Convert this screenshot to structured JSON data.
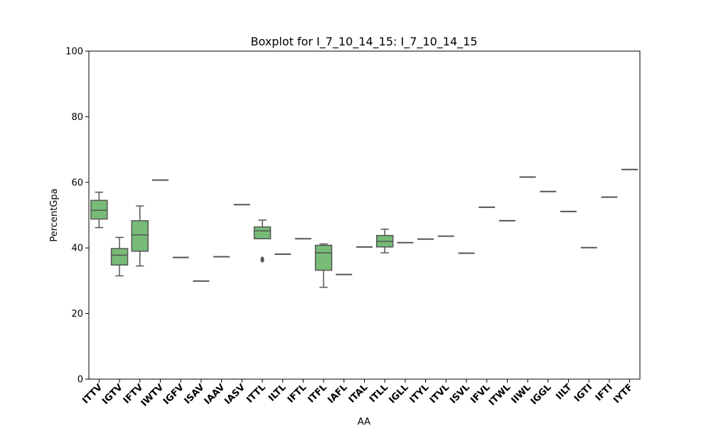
{
  "chart_data": {
    "type": "boxplot",
    "title": "Boxplot for I_7_10_14_15: I_7_10_14_15",
    "xlabel": "AA",
    "ylabel": "PercentGpa",
    "ylim": [
      0,
      100
    ],
    "yticks": [
      0,
      20,
      40,
      60,
      80,
      100
    ],
    "grid": false,
    "box_color": "#77bb77",
    "line_color": "#555555",
    "categories": [
      "ITTV",
      "IGTV",
      "IFTV",
      "IWTV",
      "IGFV",
      "ISAV",
      "IAAV",
      "IASV",
      "ITTL",
      "ILTL",
      "IFTL",
      "ITFL",
      "IAFL",
      "ITAL",
      "ITLL",
      "IGLL",
      "ITYL",
      "ITVL",
      "ISVL",
      "IFVL",
      "ITWL",
      "IIWL",
      "IGGL",
      "IILT",
      "IGTI",
      "IFTI",
      "IYTF"
    ],
    "boxes": [
      {
        "category": "ITTV",
        "min": 46.2,
        "q1": 48.8,
        "median": 51.5,
        "q3": 54.5,
        "max": 57.0,
        "outliers": []
      },
      {
        "category": "IGTV",
        "min": 31.5,
        "q1": 34.8,
        "median": 37.8,
        "q3": 39.8,
        "max": 43.2,
        "outliers": []
      },
      {
        "category": "IFTV",
        "min": 34.5,
        "q1": 39.0,
        "median": 44.0,
        "q3": 48.3,
        "max": 52.8,
        "outliers": []
      },
      {
        "category": "IWTV",
        "min": 60.7,
        "q1": 60.7,
        "median": 60.7,
        "q3": 60.7,
        "max": 60.7,
        "outliers": []
      },
      {
        "category": "IGFV",
        "min": 37.1,
        "q1": 37.1,
        "median": 37.1,
        "q3": 37.1,
        "max": 37.1,
        "outliers": []
      },
      {
        "category": "ISAV",
        "min": 29.9,
        "q1": 29.9,
        "median": 29.9,
        "q3": 29.9,
        "max": 29.9,
        "outliers": []
      },
      {
        "category": "IAAV",
        "min": 37.3,
        "q1": 37.3,
        "median": 37.3,
        "q3": 37.3,
        "max": 37.3,
        "outliers": []
      },
      {
        "category": "IASV",
        "min": 53.2,
        "q1": 53.2,
        "median": 53.2,
        "q3": 53.2,
        "max": 53.2,
        "outliers": []
      },
      {
        "category": "ITTL",
        "min": 42.8,
        "q1": 42.8,
        "median": 45.2,
        "q3": 46.4,
        "max": 48.5,
        "outliers": [
          36.2,
          36.7
        ]
      },
      {
        "category": "ILTL",
        "min": 38.1,
        "q1": 38.1,
        "median": 38.1,
        "q3": 38.1,
        "max": 38.1,
        "outliers": []
      },
      {
        "category": "IFTL",
        "min": 42.8,
        "q1": 42.8,
        "median": 42.8,
        "q3": 42.8,
        "max": 42.8,
        "outliers": []
      },
      {
        "category": "ITFL",
        "min": 28.0,
        "q1": 33.2,
        "median": 38.5,
        "q3": 40.8,
        "max": 41.2,
        "outliers": []
      },
      {
        "category": "IAFL",
        "min": 31.9,
        "q1": 31.9,
        "median": 31.9,
        "q3": 31.9,
        "max": 31.9,
        "outliers": []
      },
      {
        "category": "ITAL",
        "min": 40.3,
        "q1": 40.3,
        "median": 40.3,
        "q3": 40.3,
        "max": 40.3,
        "outliers": []
      },
      {
        "category": "ITLL",
        "min": 38.5,
        "q1": 40.3,
        "median": 42.0,
        "q3": 43.8,
        "max": 45.7,
        "outliers": []
      },
      {
        "category": "IGLL",
        "min": 41.6,
        "q1": 41.6,
        "median": 41.6,
        "q3": 41.6,
        "max": 41.6,
        "outliers": []
      },
      {
        "category": "ITYL",
        "min": 42.7,
        "q1": 42.7,
        "median": 42.7,
        "q3": 42.7,
        "max": 42.7,
        "outliers": []
      },
      {
        "category": "ITVL",
        "min": 43.6,
        "q1": 43.6,
        "median": 43.6,
        "q3": 43.6,
        "max": 43.6,
        "outliers": []
      },
      {
        "category": "ISVL",
        "min": 38.4,
        "q1": 38.4,
        "median": 38.4,
        "q3": 38.4,
        "max": 38.4,
        "outliers": []
      },
      {
        "category": "IFVL",
        "min": 52.4,
        "q1": 52.4,
        "median": 52.4,
        "q3": 52.4,
        "max": 52.4,
        "outliers": []
      },
      {
        "category": "ITWL",
        "min": 48.3,
        "q1": 48.3,
        "median": 48.3,
        "q3": 48.3,
        "max": 48.3,
        "outliers": []
      },
      {
        "category": "IIWL",
        "min": 61.6,
        "q1": 61.6,
        "median": 61.6,
        "q3": 61.6,
        "max": 61.6,
        "outliers": []
      },
      {
        "category": "IGGL",
        "min": 57.2,
        "q1": 57.2,
        "median": 57.2,
        "q3": 57.2,
        "max": 57.2,
        "outliers": []
      },
      {
        "category": "IILT",
        "min": 51.1,
        "q1": 51.1,
        "median": 51.1,
        "q3": 51.1,
        "max": 51.1,
        "outliers": []
      },
      {
        "category": "IGTI",
        "min": 40.1,
        "q1": 40.1,
        "median": 40.1,
        "q3": 40.1,
        "max": 40.1,
        "outliers": []
      },
      {
        "category": "IFTI",
        "min": 55.5,
        "q1": 55.5,
        "median": 55.5,
        "q3": 55.5,
        "max": 55.5,
        "outliers": []
      },
      {
        "category": "IYTF",
        "min": 63.9,
        "q1": 63.9,
        "median": 63.9,
        "q3": 63.9,
        "max": 63.9,
        "outliers": []
      }
    ]
  }
}
